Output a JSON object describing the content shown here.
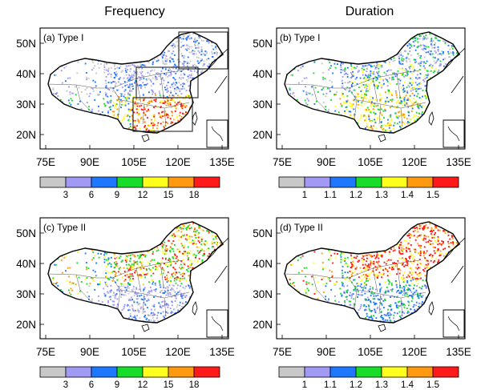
{
  "columns": [
    "Frequency",
    "Duration"
  ],
  "panels": [
    {
      "id": "a",
      "label": "(a) Type I",
      "variable": "frequency",
      "type": "I",
      "boxes": true
    },
    {
      "id": "b",
      "label": "(b) Type I",
      "variable": "duration",
      "type": "I",
      "boxes": false
    },
    {
      "id": "c",
      "label": "(c) Type II",
      "variable": "frequency",
      "type": "II",
      "boxes": false
    },
    {
      "id": "d",
      "label": "(d) Type II",
      "variable": "duration",
      "type": "II",
      "boxes": false
    }
  ],
  "lat_ticks": [
    "50N",
    "40N",
    "30N",
    "20N"
  ],
  "lon_ticks": [
    "75E",
    "90E",
    "105E",
    "120E",
    "135E"
  ],
  "colorbars": {
    "frequency": {
      "levels": [
        "3",
        "6",
        "9",
        "12",
        "15",
        "18"
      ]
    },
    "duration": {
      "levels": [
        "1",
        "1.1",
        "1.2",
        "1.3",
        "1.4",
        "1.5"
      ]
    }
  },
  "palette": [
    "#c8c8c8",
    "#a09af5",
    "#1e78ff",
    "#18dc2a",
    "#ffff1e",
    "#ff9a10",
    "#ff1a1a"
  ],
  "map_extent": {
    "lon": [
      72,
      136
    ],
    "lat": [
      15,
      55
    ]
  }
}
